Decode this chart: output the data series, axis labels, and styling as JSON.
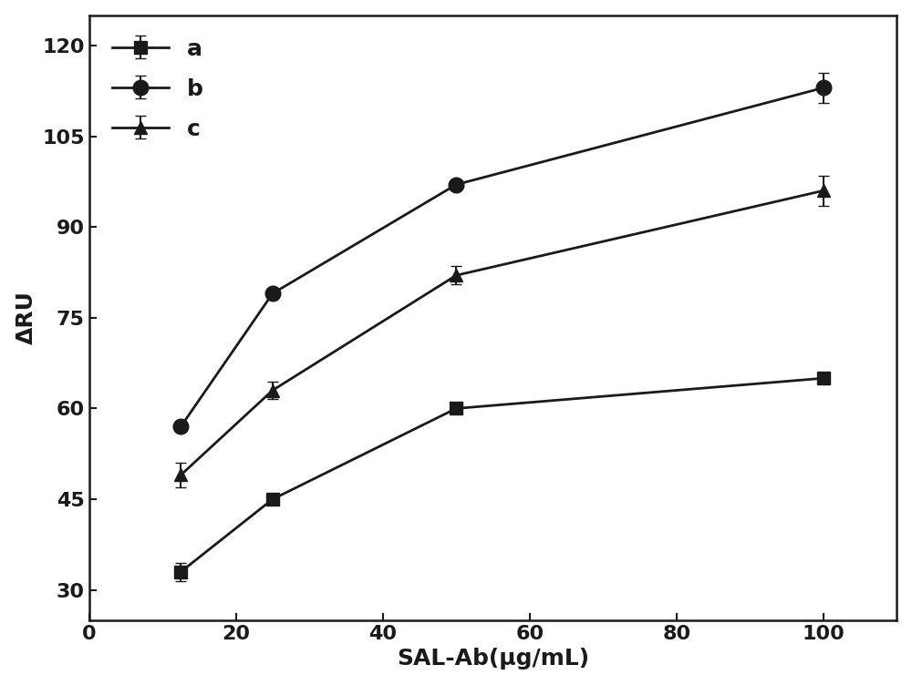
{
  "x": [
    12.5,
    25,
    50,
    100
  ],
  "series_a": {
    "y": [
      33,
      45,
      60,
      65
    ],
    "yerr": [
      1.5,
      0,
      0,
      0
    ],
    "marker": "s",
    "label": "a"
  },
  "series_b": {
    "y": [
      57,
      79,
      97,
      113
    ],
    "yerr": [
      0,
      0,
      0,
      2.5
    ],
    "marker": "o",
    "label": "b"
  },
  "series_c": {
    "y": [
      49,
      63,
      82,
      96
    ],
    "yerr": [
      2,
      1.5,
      1.5,
      2.5
    ],
    "marker": "^",
    "label": "c"
  },
  "color": "#1a1a1a",
  "linewidth": 2.0,
  "markersize": 10,
  "xlabel": "SAL-Ab(μg/mL)",
  "ylabel": "ΔRU",
  "xlim": [
    0,
    110
  ],
  "ylim": [
    25,
    125
  ],
  "yticks": [
    30,
    45,
    60,
    75,
    90,
    105,
    120
  ],
  "xticks": [
    0,
    20,
    40,
    60,
    80,
    100
  ],
  "title_fontsize": 18,
  "label_fontsize": 18,
  "tick_fontsize": 16,
  "legend_fontsize": 18,
  "background_color": "#ffffff"
}
